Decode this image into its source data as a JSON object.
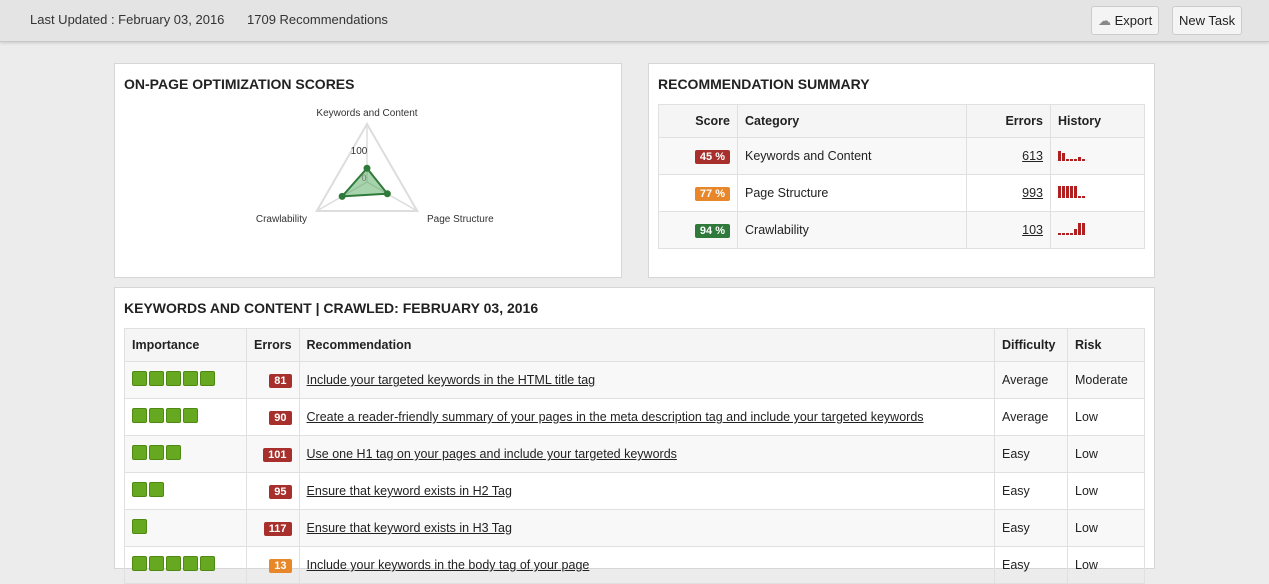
{
  "header": {
    "last_updated": "Last Updated : February 03, 2016",
    "recommendations": "1709 Recommendations",
    "export": "Export",
    "new_task": "New Task"
  },
  "colors": {
    "red": "#a8302c",
    "orange": "#e8862a",
    "green": "#2f7a3a",
    "importance": "#66a81f"
  },
  "radar": {
    "title": "ON-PAGE OPTIMIZATION SCORES",
    "axes": [
      "Keywords and Content",
      "Page Structure",
      "Crawlability"
    ],
    "values": [
      45,
      77,
      94
    ],
    "tick_labels": [
      "0",
      "100"
    ]
  },
  "summary": {
    "title": "RECOMMENDATION SUMMARY",
    "headers": [
      "Score",
      "Category",
      "Errors",
      "History"
    ],
    "rows": [
      {
        "score": "45 %",
        "color": "red",
        "category": "Keywords and Content",
        "errors": "613",
        "history": [
          8,
          6,
          1,
          1,
          1,
          3,
          1
        ]
      },
      {
        "score": "77 %",
        "color": "orange",
        "category": "Page Structure",
        "errors": "993",
        "history": [
          10,
          10,
          10,
          10,
          10,
          1,
          1
        ]
      },
      {
        "score": "94 %",
        "color": "green",
        "category": "Crawlability",
        "errors": "103",
        "history": [
          1,
          1,
          1,
          1,
          5,
          10,
          10
        ]
      }
    ]
  },
  "keywords": {
    "title": "KEYWORDS AND CONTENT | CRAWLED: FEBRUARY 03, 2016",
    "headers": [
      "Importance",
      "Errors",
      "Recommendation",
      "Difficulty",
      "Risk"
    ],
    "rows": [
      {
        "importance": 5,
        "errors": "81",
        "color": "red",
        "text": "Include your targeted keywords in the HTML title tag",
        "difficulty": "Average",
        "risk": "Moderate"
      },
      {
        "importance": 4,
        "errors": "90",
        "color": "red",
        "text": "Create a reader-friendly summary of your pages in the meta description tag and include your targeted keywords",
        "difficulty": "Average",
        "risk": "Low"
      },
      {
        "importance": 3,
        "errors": "101",
        "color": "red",
        "text": "Use one H1 tag on your pages and include your targeted keywords",
        "difficulty": "Easy",
        "risk": "Low"
      },
      {
        "importance": 2,
        "errors": "95",
        "color": "red",
        "text": "Ensure that keyword exists in H2 Tag",
        "difficulty": "Easy",
        "risk": "Low"
      },
      {
        "importance": 1,
        "errors": "117",
        "color": "red",
        "text": "Ensure that keyword exists in H3 Tag",
        "difficulty": "Easy",
        "risk": "Low"
      },
      {
        "importance": 5,
        "errors": "13",
        "color": "orange",
        "text": "Include your keywords in the body tag of your page",
        "difficulty": "Easy",
        "risk": "Low"
      }
    ]
  }
}
